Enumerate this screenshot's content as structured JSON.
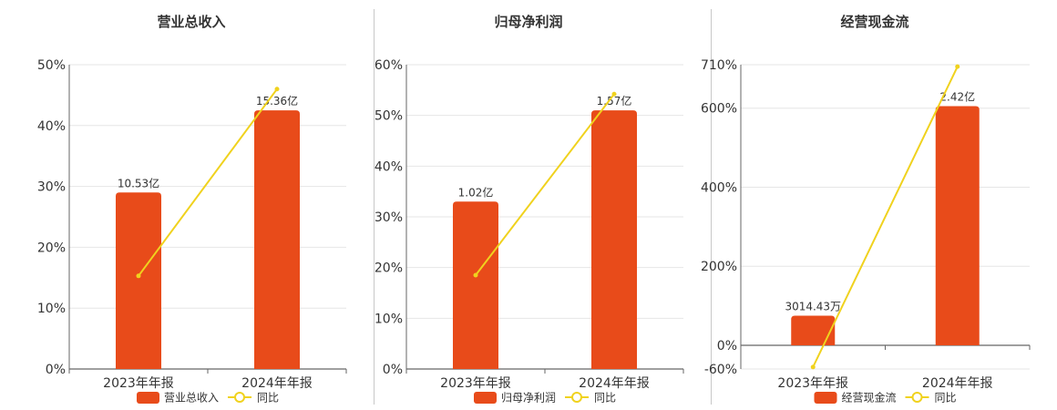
{
  "colors": {
    "bar": "#E84B1A",
    "line": "#F0D21E",
    "grid": "#e6e6e6",
    "axis": "#666666",
    "divider": "#c8c8c8"
  },
  "chart_data": [
    {
      "type": "bar",
      "title": "营业总收入",
      "categories": [
        "2023年年报",
        "2024年年报"
      ],
      "ylim": [
        0,
        50
      ],
      "yticks": [
        0,
        10,
        20,
        30,
        40,
        50
      ],
      "yticklabels": [
        "0%",
        "10%",
        "20%",
        "30%",
        "40%",
        "50%"
      ],
      "series": [
        {
          "name": "营业总收入",
          "type": "bar",
          "values": [
            29,
            42.5
          ],
          "labels": [
            "10.53亿",
            "15.36亿"
          ]
        },
        {
          "name": "同比",
          "type": "line",
          "values": [
            15.3,
            46
          ]
        }
      ],
      "legend": "bottom",
      "grid": true
    },
    {
      "type": "bar",
      "title": "归母净利润",
      "categories": [
        "2023年年报",
        "2024年年报"
      ],
      "ylim": [
        0,
        60
      ],
      "yticks": [
        0,
        10,
        20,
        30,
        40,
        50,
        60
      ],
      "yticklabels": [
        "0%",
        "10%",
        "20%",
        "30%",
        "40%",
        "50%",
        "60%"
      ],
      "series": [
        {
          "name": "归母净利润",
          "type": "bar",
          "values": [
            33,
            51
          ],
          "labels": [
            "1.02亿",
            "1.57亿"
          ]
        },
        {
          "name": "同比",
          "type": "line",
          "values": [
            18.5,
            54.2
          ]
        }
      ],
      "legend": "bottom",
      "grid": true
    },
    {
      "type": "bar",
      "title": "经营现金流",
      "categories": [
        "2023年年报",
        "2024年年报"
      ],
      "ylim": [
        -60,
        710
      ],
      "yticks": [
        -60,
        0,
        200,
        400,
        600,
        710
      ],
      "yticklabels": [
        "-60%",
        "0%",
        "200%",
        "400%",
        "600%",
        "710%"
      ],
      "series": [
        {
          "name": "经营现金流",
          "type": "bar",
          "values": [
            75,
            605
          ],
          "labels": [
            "3014.43万",
            "2.42亿"
          ]
        },
        {
          "name": "同比",
          "type": "line",
          "values": [
            -55,
            705
          ]
        }
      ],
      "legend": "bottom",
      "grid": true
    }
  ]
}
